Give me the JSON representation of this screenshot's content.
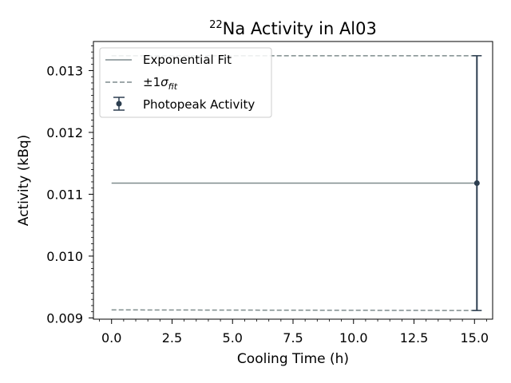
{
  "chart_data": {
    "type": "line",
    "title": {
      "superscript": "22",
      "main": "Na Activity in Al03"
    },
    "xlabel": "Cooling Time (h)",
    "ylabel": "Activity (kBq)",
    "xlim": [
      -0.75,
      15.75
    ],
    "ylim": [
      0.00898,
      0.01347
    ],
    "x_ticks": [
      0.0,
      2.5,
      5.0,
      7.5,
      10.0,
      12.5,
      15.0
    ],
    "x_tick_labels": [
      "0.0",
      "2.5",
      "5.0",
      "7.5",
      "10.0",
      "12.5",
      "15.0"
    ],
    "y_ticks": [
      0.009,
      0.01,
      0.011,
      0.012,
      0.013
    ],
    "y_tick_labels": [
      "0.009",
      "0.010",
      "0.011",
      "0.012",
      "0.013"
    ],
    "grid": false,
    "legend_position": "top-left",
    "legend": {
      "fit_label": "Exponential Fit",
      "sigma_label": {
        "prefix": "±1",
        "symbol": "σ",
        "subscript": "fit"
      },
      "data_label": "Photopeak Activity"
    },
    "series": [
      {
        "role": "fit",
        "style": "solid",
        "color": "#7f8c8d",
        "x": [
          0.0,
          15.1
        ],
        "y": [
          0.01118,
          0.01118
        ]
      },
      {
        "role": "upper",
        "style": "dashed",
        "color": "#7f8c8d",
        "x": [
          0.0,
          15.1
        ],
        "y": [
          0.01324,
          0.01324
        ]
      },
      {
        "role": "lower",
        "style": "dashed",
        "color": "#7f8c8d",
        "x": [
          0.0,
          15.1
        ],
        "y": [
          0.00913,
          0.00912
        ]
      },
      {
        "role": "data",
        "style": "errorbar",
        "color": "#2c3e50",
        "x": [
          15.1
        ],
        "y": [
          0.01118
        ],
        "yerr": [
          0.00206
        ]
      }
    ]
  }
}
